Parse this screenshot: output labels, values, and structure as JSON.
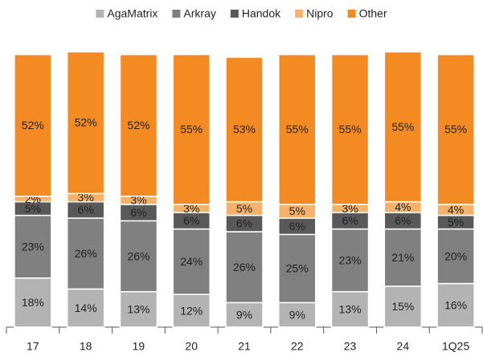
{
  "chart_data": {
    "type": "stacked_bar",
    "categories": [
      "17",
      "18",
      "19",
      "20",
      "21",
      "22",
      "23",
      "24",
      "1Q25"
    ],
    "ylim": [
      0,
      100
    ],
    "series": [
      {
        "name": "AgaMatrix",
        "color": "#b3b3b3",
        "values": [
          18,
          14,
          13,
          12,
          9,
          9,
          13,
          15,
          16
        ],
        "value_labels": [
          "18%",
          "14%",
          "13%",
          "12%",
          "9%",
          "9%",
          "13%",
          "15%",
          "16%"
        ]
      },
      {
        "name": "Arkray",
        "color": "#808080",
        "values": [
          23,
          26,
          26,
          24,
          26,
          25,
          23,
          21,
          20
        ],
        "value_labels": [
          "23%",
          "26%",
          "26%",
          "24%",
          "26%",
          "25%",
          "23%",
          "21%",
          "20%"
        ]
      },
      {
        "name": "Handok",
        "color": "#595959",
        "values": [
          5,
          6,
          6,
          6,
          6,
          6,
          6,
          6,
          5
        ],
        "value_labels": [
          "5%",
          "6%",
          "6%",
          "6%",
          "6%",
          "6%",
          "6%",
          "6%",
          "5%"
        ]
      },
      {
        "name": "Nipro",
        "color": "#f4b26a",
        "values": [
          2,
          3,
          3,
          3,
          5,
          5,
          3,
          4,
          4
        ],
        "value_labels": [
          "2%",
          "3%",
          "3%",
          "3%",
          "5%",
          "5%",
          "3%",
          "4%",
          "4%"
        ]
      },
      {
        "name": "Other",
        "color": "#f38b22",
        "values": [
          52,
          52,
          52,
          55,
          53,
          55,
          55,
          55,
          55
        ],
        "value_labels": [
          "52%",
          "52%",
          "52%",
          "55%",
          "53%",
          "55%",
          "55%",
          "55%",
          "55%"
        ]
      }
    ]
  }
}
